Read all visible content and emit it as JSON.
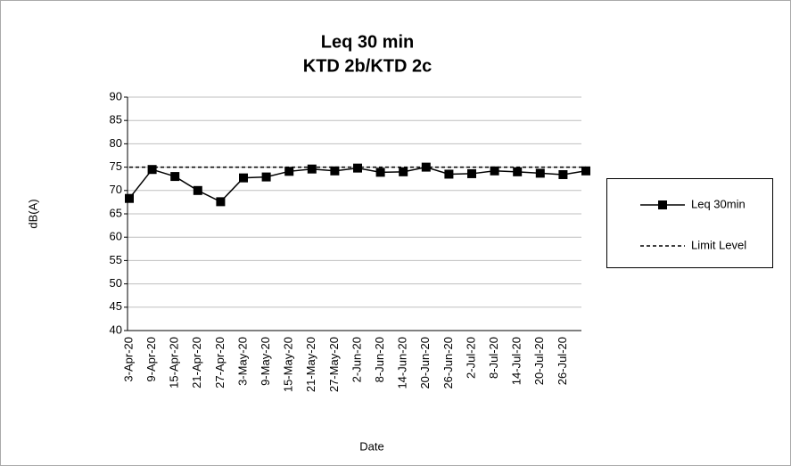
{
  "chart_data": {
    "type": "line",
    "title": [
      "Leq 30 min",
      "KTD 2b/KTD 2c"
    ],
    "y_label": "dB(A)",
    "x_label": "Date",
    "categories": [
      "3-Apr-20",
      "9-Apr-20",
      "15-Apr-20",
      "21-Apr-20",
      "27-Apr-20",
      "3-May-20",
      "9-May-20",
      "15-May-20",
      "21-May-20",
      "27-May-20",
      "2-Jun-20",
      "8-Jun-20",
      "14-Jun-20",
      "20-Jun-20",
      "26-Jun-20",
      "2-Jul-20",
      "8-Jul-20",
      "14-Jul-20",
      "20-Jul-20",
      "26-Jul-20",
      null
    ],
    "series": [
      {
        "name": "Leq 30min",
        "color": "#000000",
        "marker": "square",
        "dash": false,
        "values": [
          68.3,
          74.5,
          73,
          70,
          67.6,
          72.7,
          72.9,
          74.1,
          74.6,
          74.2,
          74.8,
          73.9,
          74,
          75,
          73.5,
          73.6,
          74.2,
          74,
          73.7,
          73.4,
          74.2
        ]
      },
      {
        "name": "Limit Level",
        "color": "#000000",
        "marker": "none",
        "dash": true,
        "values": [
          75,
          75,
          75,
          75,
          75,
          75,
          75,
          75,
          75,
          75,
          75,
          75,
          75,
          75,
          75,
          75,
          75,
          75,
          75,
          75,
          75
        ]
      }
    ],
    "ylim": [
      40,
      90
    ],
    "yticks": [
      40,
      45,
      50,
      55,
      60,
      65,
      70,
      75,
      80,
      85,
      90
    ],
    "grid": true,
    "legend": "right"
  }
}
